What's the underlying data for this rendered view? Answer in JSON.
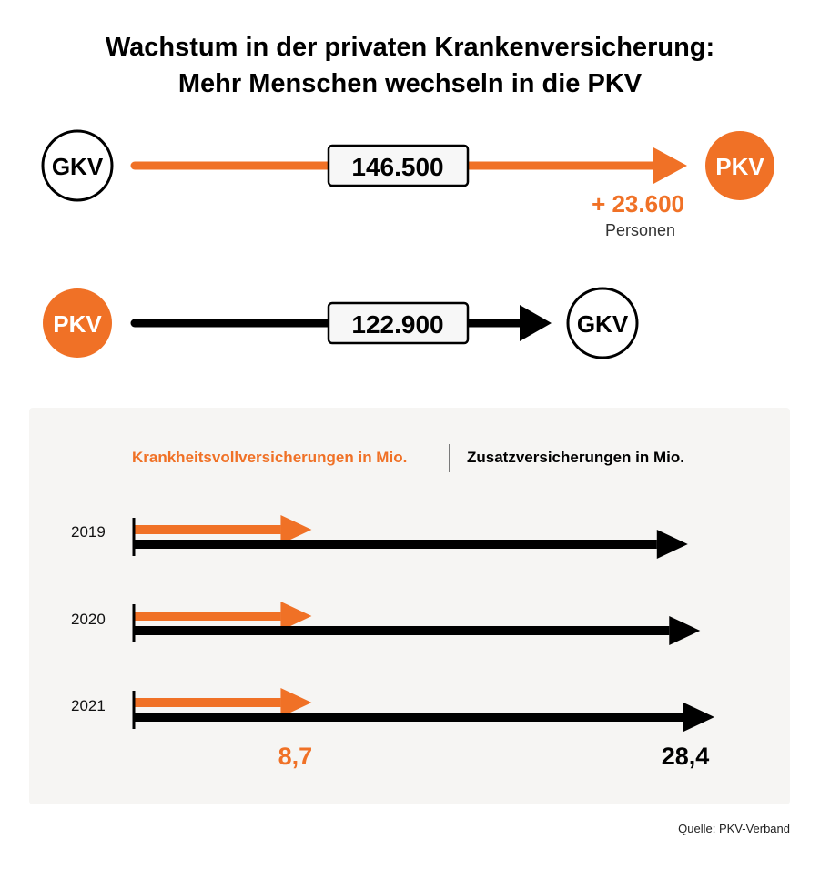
{
  "title": {
    "line1": "Wachstum in der privaten Krankenversicherung:",
    "line2": "Mehr Menschen wechseln in die PKV"
  },
  "flows": [
    {
      "from": "GKV",
      "to": "PKV",
      "value": "146.500",
      "color": "#f07126"
    },
    {
      "from": "PKV",
      "to": "GKV",
      "value": "122.900",
      "color": "#000000"
    }
  ],
  "net": {
    "value": "+ 23.600",
    "unit": "Personen"
  },
  "colors": {
    "orange": "#f07126",
    "black": "#000000",
    "panel": "#f6f5f3"
  },
  "chart_data": {
    "type": "bar",
    "categories": [
      "2019",
      "2020",
      "2021"
    ],
    "series": [
      {
        "name": "Krankheitsvollversicherungen in Mio.",
        "color": "#f07126",
        "values": [
          8.7,
          8.7,
          8.7
        ]
      },
      {
        "name": "Zusatzversicherungen in Mio.",
        "color": "#000000",
        "values": [
          27.1,
          27.7,
          28.4
        ]
      }
    ],
    "labels": {
      "series0_label": "8,7",
      "series1_label": "28,4"
    },
    "orientation": "horizontal",
    "xlim": [
      0,
      28.4
    ]
  },
  "source": "Quelle: PKV-Verband"
}
